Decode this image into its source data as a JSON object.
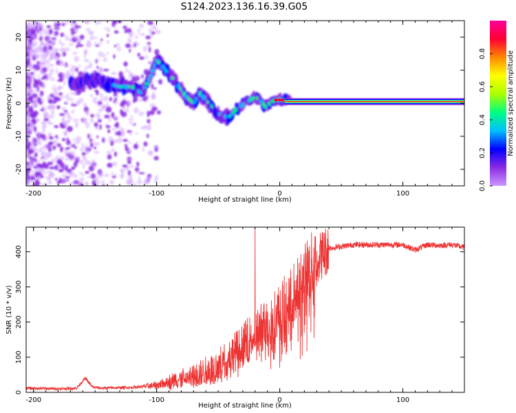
{
  "figure_title": "S124.2023.136.16.39.G05",
  "colors": {
    "frame": "#000000",
    "snr_line": "#ee3333",
    "signal_core": "#ff2222",
    "colormap": [
      "#cc99ff",
      "#8a2be2",
      "#0000ff",
      "#00bfff",
      "#00ff7f",
      "#aaff00",
      "#ffff00",
      "#ff8800",
      "#ff0033",
      "#ff0099"
    ]
  },
  "chart_data": [
    {
      "type": "heatmap",
      "xlabel": "Height of straight line (km)",
      "ylabel": "Frequency (Hz)",
      "xlim": [
        -206,
        150
      ],
      "ylim": [
        -25,
        25
      ],
      "xticks": [
        -200,
        -100,
        0,
        100
      ],
      "yticks": [
        -20,
        -10,
        0,
        10,
        20
      ],
      "colorbar": {
        "label": "Normalized spectral amplitude",
        "range": [
          0,
          1
        ],
        "ticks": [
          0.0,
          0.2,
          0.4,
          0.6,
          0.8
        ]
      },
      "ridge": {
        "x": [
          -166,
          -150,
          -140,
          -130,
          -120,
          -112,
          -105,
          -100,
          -95,
          -88,
          -82,
          -76,
          -70,
          -65,
          -60,
          -55,
          -50,
          -45,
          -40,
          -36,
          -32,
          -28,
          -24,
          -20,
          -16,
          -12,
          -8,
          -4,
          0,
          5,
          10,
          30,
          60,
          100,
          150
        ],
        "y": [
          6,
          7,
          6,
          5,
          5,
          3,
          8,
          13,
          11,
          8,
          5,
          2,
          0,
          3,
          1,
          -1,
          -3,
          -4,
          -4,
          -2,
          -1,
          0,
          1,
          2,
          1,
          -1,
          0,
          1,
          1,
          1,
          0.5,
          0.5,
          0.5,
          0.5,
          0.5
        ]
      }
    },
    {
      "type": "line",
      "xlabel": "Height of straight line (km)",
      "ylabel": "SNR (10 * v/v)",
      "xlim": [
        -206,
        150
      ],
      "ylim": [
        0,
        470
      ],
      "xticks": [
        -200,
        -100,
        0,
        100
      ],
      "yticks": [
        0,
        100,
        200,
        300,
        400
      ],
      "spike": {
        "x": -20,
        "y": 470
      },
      "trend": {
        "x": [
          -206,
          -180,
          -165,
          -158,
          -152,
          -145,
          -120,
          -100,
          -85,
          -70,
          -60,
          -50,
          -40,
          -30,
          -20,
          -10,
          0,
          10,
          20,
          30,
          40,
          60,
          80,
          100,
          110,
          120,
          130,
          140,
          150
        ],
        "y": [
          12,
          10,
          12,
          40,
          15,
          12,
          14,
          20,
          35,
          45,
          60,
          75,
          105,
          135,
          170,
          200,
          230,
          275,
          330,
          380,
          410,
          420,
          420,
          420,
          405,
          420,
          418,
          420,
          412
        ]
      }
    }
  ]
}
